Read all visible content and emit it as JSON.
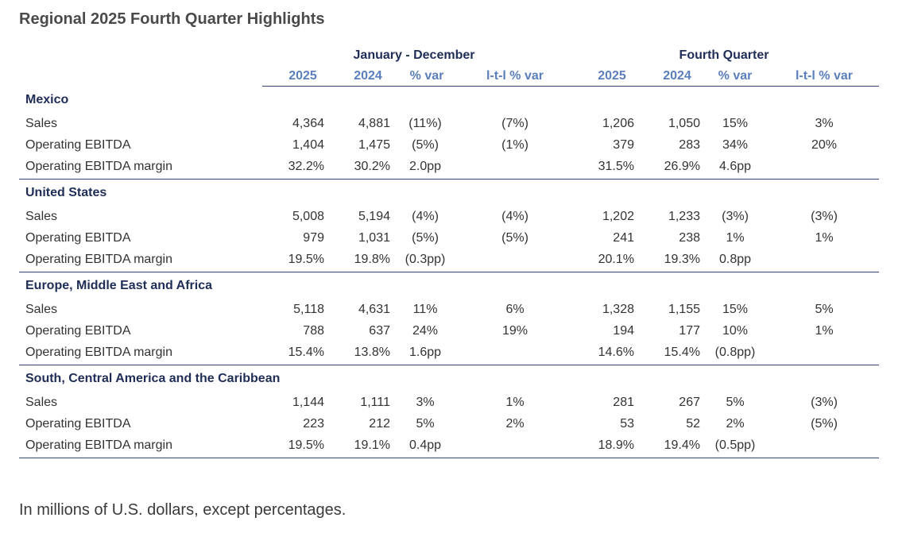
{
  "title": "Regional 2025 Fourth Quarter Highlights",
  "groups": {
    "annual": "January - December",
    "quarter": "Fourth Quarter"
  },
  "columns": [
    "2025",
    "2024",
    "% var",
    "l-t-l % var",
    "2025",
    "2024",
    "% var",
    "l-t-l % var"
  ],
  "regions": [
    {
      "name": "Mexico",
      "rows": [
        {
          "label": "Sales",
          "values": [
            "4,364",
            "4,881",
            "(11%)",
            "(7%)",
            "1,206",
            "1,050",
            "15%",
            "3%"
          ]
        },
        {
          "label": "Operating EBITDA",
          "values": [
            "1,404",
            "1,475",
            "(5%)",
            "(1%)",
            "379",
            "283",
            "34%",
            "20%"
          ]
        },
        {
          "label": "Operating EBITDA margin",
          "values": [
            "32.2%",
            "30.2%",
            "2.0pp",
            "",
            "31.5%",
            "26.9%",
            "4.6pp",
            ""
          ]
        }
      ]
    },
    {
      "name": "United States",
      "rows": [
        {
          "label": "Sales",
          "values": [
            "5,008",
            "5,194",
            "(4%)",
            "(4%)",
            "1,202",
            "1,233",
            "(3%)",
            "(3%)"
          ]
        },
        {
          "label": "Operating EBITDA",
          "values": [
            "979",
            "1,031",
            "(5%)",
            "(5%)",
            "241",
            "238",
            "1%",
            "1%"
          ]
        },
        {
          "label": "Operating EBITDA margin",
          "values": [
            "19.5%",
            "19.8%",
            "(0.3pp)",
            "",
            "20.1%",
            "19.3%",
            "0.8pp",
            ""
          ]
        }
      ]
    },
    {
      "name": "Europe, Middle East and Africa",
      "rows": [
        {
          "label": "Sales",
          "values": [
            "5,118",
            "4,631",
            "11%",
            "6%",
            "1,328",
            "1,155",
            "15%",
            "5%"
          ]
        },
        {
          "label": "Operating EBITDA",
          "values": [
            "788",
            "637",
            "24%",
            "19%",
            "194",
            "177",
            "10%",
            "1%"
          ]
        },
        {
          "label": "Operating EBITDA margin",
          "values": [
            "15.4%",
            "13.8%",
            "1.6pp",
            "",
            "14.6%",
            "15.4%",
            "(0.8pp)",
            ""
          ]
        }
      ]
    },
    {
      "name": "South, Central America and the Caribbean",
      "rows": [
        {
          "label": "Sales",
          "values": [
            "1,144",
            "1,111",
            "3%",
            "1%",
            "281",
            "267",
            "5%",
            "(3%)"
          ]
        },
        {
          "label": "Operating EBITDA",
          "values": [
            "223",
            "212",
            "5%",
            "2%",
            "53",
            "52",
            "2%",
            "(5%)"
          ]
        },
        {
          "label": "Operating EBITDA margin",
          "values": [
            "19.5%",
            "19.1%",
            "0.4pp",
            "",
            "18.9%",
            "19.4%",
            "(0.5pp)",
            ""
          ]
        }
      ]
    }
  ],
  "footnote": "In millions of U.S. dollars, except percentages."
}
